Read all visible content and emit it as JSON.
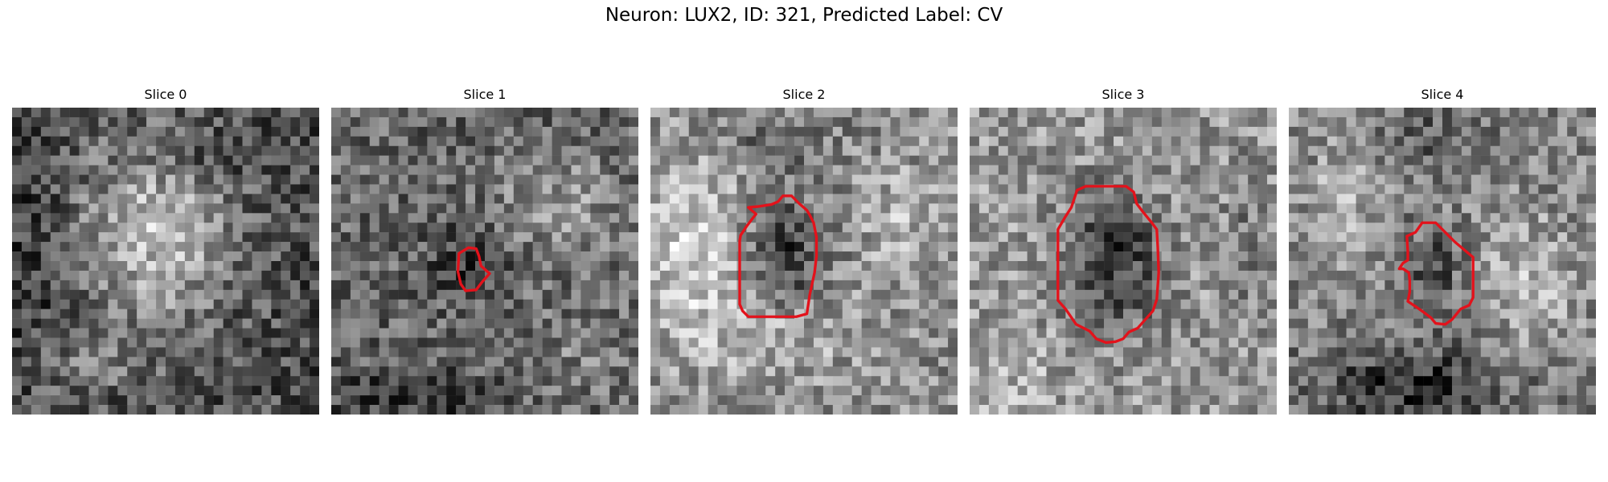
{
  "figure": {
    "title": "Neuron: LUX2, ID: 321, Predicted Label: CV"
  },
  "panels": [
    {
      "title": "Slice 0",
      "has_contour": false
    },
    {
      "title": "Slice 1",
      "has_contour": true
    },
    {
      "title": "Slice 2",
      "has_contour": true
    },
    {
      "title": "Slice 3",
      "has_contour": true
    },
    {
      "title": "Slice 4",
      "has_contour": true
    }
  ],
  "colors": {
    "contour": "#e3121b",
    "colormap": "gray"
  }
}
